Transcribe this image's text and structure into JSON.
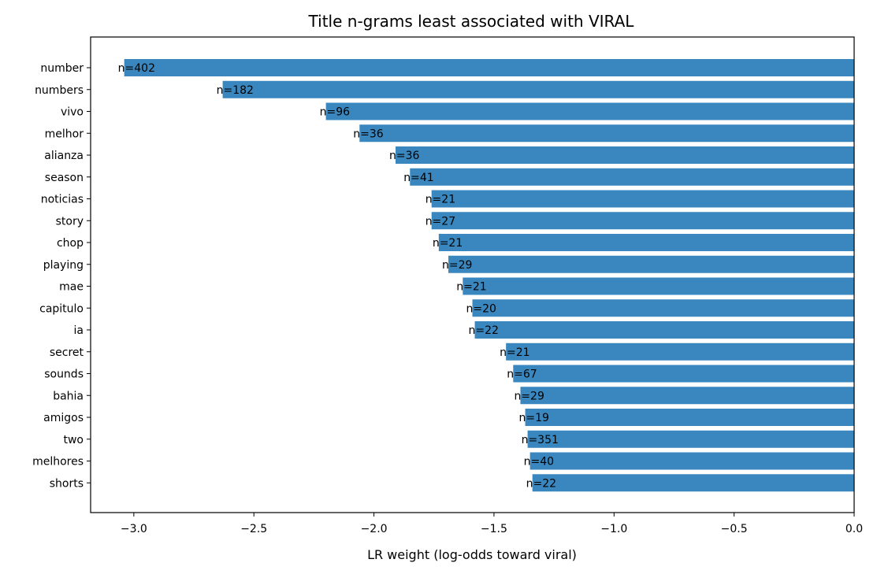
{
  "chart_data": {
    "type": "bar",
    "orientation": "horizontal",
    "title": "Title n-grams least associated with VIRAL",
    "xlabel": "LR weight (log-odds toward viral)",
    "ylabel": "",
    "xlim": [
      -3.18,
      0.0
    ],
    "xticks": [
      -3.0,
      -2.5,
      -2.0,
      -1.5,
      -1.0,
      -0.5,
      0.0
    ],
    "xtick_labels": [
      "−3.0",
      "−2.5",
      "−2.0",
      "−1.5",
      "−1.0",
      "−0.5",
      "0.0"
    ],
    "bar_color": "#3a87bf",
    "grid": false,
    "categories": [
      "number",
      "numbers",
      "vivo",
      "melhor",
      "alianza",
      "season",
      "noticias",
      "story",
      "chop",
      "playing",
      "mae",
      "capitulo",
      "ia",
      "secret",
      "sounds",
      "bahia",
      "amigos",
      "two",
      "melhores",
      "shorts"
    ],
    "values": [
      -3.04,
      -2.63,
      -2.2,
      -2.06,
      -1.91,
      -1.85,
      -1.76,
      -1.76,
      -1.73,
      -1.69,
      -1.63,
      -1.59,
      -1.58,
      -1.45,
      -1.42,
      -1.39,
      -1.37,
      -1.36,
      -1.35,
      -1.34
    ],
    "bar_labels": [
      "n=402",
      "n=182",
      "n=96",
      "n=36",
      "n=36",
      "n=41",
      "n=21",
      "n=27",
      "n=21",
      "n=29",
      "n=21",
      "n=20",
      "n=22",
      "n=21",
      "n=67",
      "n=29",
      "n=19",
      "n=351",
      "n=40",
      "n=22"
    ]
  }
}
